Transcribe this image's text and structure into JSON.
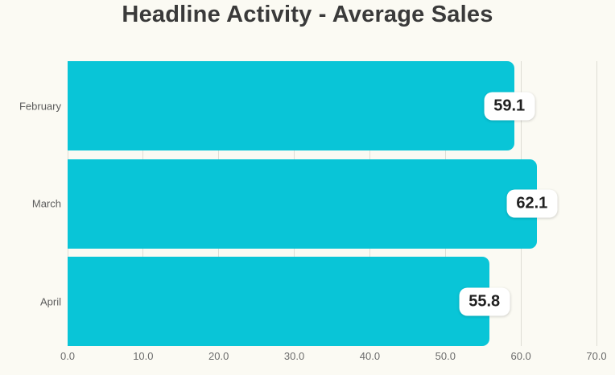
{
  "chart_data": {
    "type": "bar",
    "orientation": "horizontal",
    "title": "Headline Activity - Average Sales",
    "categories": [
      "February",
      "March",
      "April"
    ],
    "values": [
      59.1,
      62.1,
      55.8
    ],
    "value_labels": [
      "59.1",
      "62.1",
      "55.8"
    ],
    "x_ticks": [
      "0.0",
      "10.0",
      "20.0",
      "30.0",
      "40.0",
      "50.0",
      "60.0",
      "70.0"
    ],
    "xlim": [
      0,
      70
    ],
    "xlabel": "",
    "ylabel": "",
    "grid": "vertical",
    "legend": "none"
  },
  "colors": {
    "background": "#fbfaf3",
    "bar": "#09c5d7",
    "title_text": "#3a3a3a",
    "category_text": "#5c5c5c",
    "tick_text": "#6b6b6b",
    "gridline": "#deddd5",
    "value_badge_bg": "#ffffff",
    "value_badge_text": "#202020"
  }
}
